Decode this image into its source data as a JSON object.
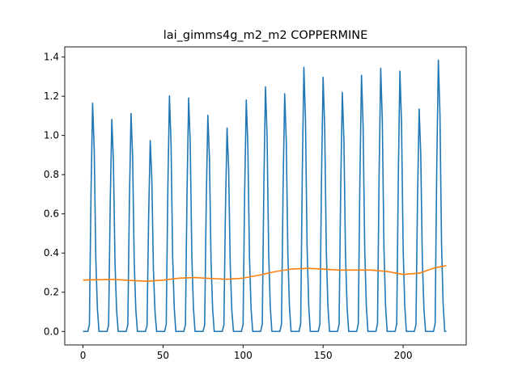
{
  "chart_data": {
    "type": "line",
    "title": "lai_gimms4g_m2_m2 COPPERMINE",
    "xlabel": "",
    "ylabel": "",
    "xlim": [
      -11.4,
      239.4
    ],
    "ylim": [
      -0.069,
      1.452
    ],
    "x_ticks": [
      0,
      50,
      100,
      150,
      200
    ],
    "y_ticks": [
      0.0,
      0.2,
      0.4,
      0.6,
      0.8,
      1.0,
      1.2,
      1.4
    ],
    "x_tick_labels": [
      "0",
      "50",
      "100",
      "150",
      "200"
    ],
    "y_tick_labels": [
      "0.0",
      "0.2",
      "0.4",
      "0.6",
      "0.8",
      "1.0",
      "1.2",
      "1.4"
    ],
    "grid": false,
    "legend": "none",
    "series": [
      {
        "color": "#1f77b4",
        "peaks": [
          {
            "x": 6,
            "y": 1.165
          },
          {
            "x": 18,
            "y": 1.082
          },
          {
            "x": 30,
            "y": 1.112
          },
          {
            "x": 42,
            "y": 0.974
          },
          {
            "x": 54,
            "y": 1.202
          },
          {
            "x": 66,
            "y": 1.191
          },
          {
            "x": 78,
            "y": 1.103
          },
          {
            "x": 90,
            "y": 1.038
          },
          {
            "x": 102,
            "y": 1.181
          },
          {
            "x": 114,
            "y": 1.248
          },
          {
            "x": 126,
            "y": 1.213
          },
          {
            "x": 138,
            "y": 1.348
          },
          {
            "x": 150,
            "y": 1.297
          },
          {
            "x": 162,
            "y": 1.22
          },
          {
            "x": 174,
            "y": 1.307
          },
          {
            "x": 186,
            "y": 1.343
          },
          {
            "x": 198,
            "y": 1.328
          },
          {
            "x": 210,
            "y": 1.135
          },
          {
            "x": 222,
            "y": 1.385
          }
        ],
        "baseline": 0.0,
        "x_range": [
          0,
          227
        ]
      },
      {
        "color": "#ff7f0e",
        "x": [
          0,
          10,
          20,
          30,
          40,
          50,
          60,
          70,
          80,
          90,
          100,
          110,
          120,
          130,
          140,
          150,
          160,
          170,
          180,
          190,
          200,
          210,
          220,
          227
        ],
        "y": [
          0.262,
          0.264,
          0.265,
          0.26,
          0.256,
          0.262,
          0.272,
          0.275,
          0.27,
          0.266,
          0.272,
          0.287,
          0.305,
          0.318,
          0.322,
          0.318,
          0.313,
          0.313,
          0.313,
          0.306,
          0.291,
          0.297,
          0.325,
          0.336
        ]
      }
    ]
  }
}
